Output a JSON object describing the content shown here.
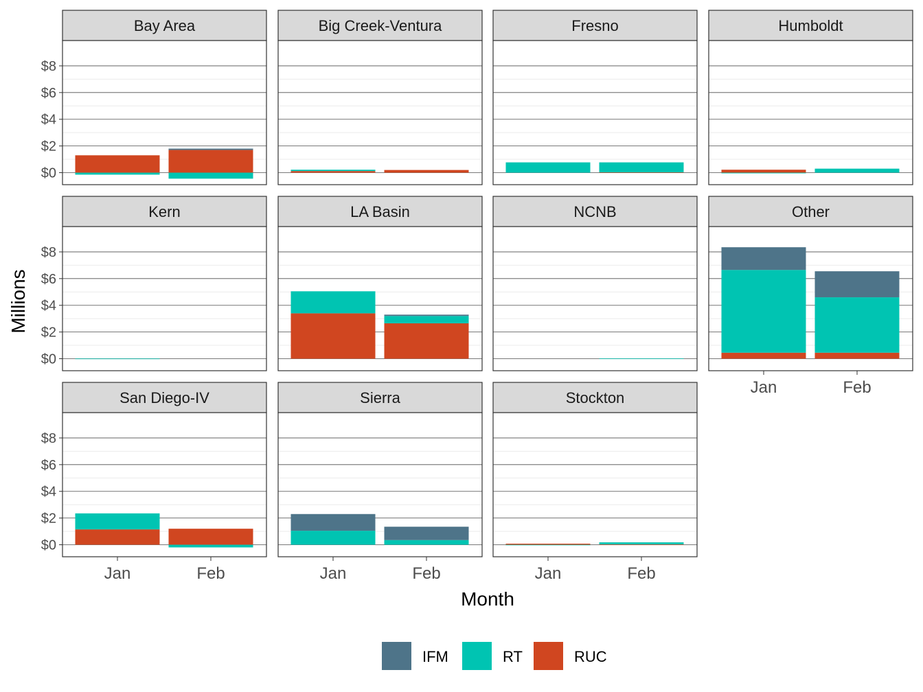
{
  "chart_data": {
    "type": "bar",
    "stacked": true,
    "facet": true,
    "categories": [
      "Jan",
      "Feb"
    ],
    "xlabel": "Month",
    "ylabel": "Millions",
    "ylim": [
      -0.9,
      9.9
    ],
    "y_ticks": [
      {
        "value": 0,
        "label": "$0"
      },
      {
        "value": 2,
        "label": "$2"
      },
      {
        "value": 4,
        "label": "$4"
      },
      {
        "value": 6,
        "label": "$6"
      },
      {
        "value": 8,
        "label": "$8"
      }
    ],
    "grid": true,
    "legend": {
      "position": "bottom"
    },
    "series_order": [
      "IFM",
      "RT",
      "RUC"
    ],
    "series_colors": {
      "IFM": "#4e7489",
      "RT": "#00c4b2",
      "RUC": "#d04620"
    },
    "facets": [
      {
        "name": "Bay Area",
        "series": [
          {
            "name": "IFM",
            "values": [
              0.0,
              0.1
            ]
          },
          {
            "name": "RT",
            "values": [
              -0.15,
              -0.45
            ]
          },
          {
            "name": "RUC",
            "values": [
              1.3,
              1.7
            ]
          }
        ]
      },
      {
        "name": "Big Creek-Ventura",
        "series": [
          {
            "name": "IFM",
            "values": [
              0.0,
              0.0
            ]
          },
          {
            "name": "RT",
            "values": [
              0.1,
              0.0
            ]
          },
          {
            "name": "RUC",
            "values": [
              0.12,
              0.2
            ]
          }
        ]
      },
      {
        "name": "Fresno",
        "series": [
          {
            "name": "IFM",
            "values": [
              0.0,
              0.0
            ]
          },
          {
            "name": "RT",
            "values": [
              0.77,
              0.75
            ]
          },
          {
            "name": "RUC",
            "values": [
              0.0,
              0.02
            ]
          }
        ]
      },
      {
        "name": "Humboldt",
        "series": [
          {
            "name": "IFM",
            "values": [
              0.0,
              0.0
            ]
          },
          {
            "name": "RT",
            "values": [
              -0.05,
              0.3
            ]
          },
          {
            "name": "RUC",
            "values": [
              0.22,
              0.0
            ]
          }
        ]
      },
      {
        "name": "Kern",
        "series": [
          {
            "name": "IFM",
            "values": [
              0.0,
              0.0
            ]
          },
          {
            "name": "RT",
            "values": [
              0.01,
              0.0
            ]
          },
          {
            "name": "RUC",
            "values": [
              0.0,
              0.0
            ]
          }
        ]
      },
      {
        "name": "LA Basin",
        "series": [
          {
            "name": "IFM",
            "values": [
              0.0,
              0.1
            ]
          },
          {
            "name": "RT",
            "values": [
              1.65,
              0.55
            ]
          },
          {
            "name": "RUC",
            "values": [
              3.4,
              2.65
            ]
          }
        ]
      },
      {
        "name": "NCNB",
        "series": [
          {
            "name": "IFM",
            "values": [
              0.0,
              0.0
            ]
          },
          {
            "name": "RT",
            "values": [
              0.0,
              0.02
            ]
          },
          {
            "name": "RUC",
            "values": [
              0.0,
              0.0
            ]
          }
        ]
      },
      {
        "name": "Other",
        "series": [
          {
            "name": "IFM",
            "values": [
              1.7,
              1.95
            ]
          },
          {
            "name": "RT",
            "values": [
              6.2,
              4.15
            ]
          },
          {
            "name": "RUC",
            "values": [
              0.45,
              0.45
            ]
          }
        ]
      },
      {
        "name": "San Diego-IV",
        "series": [
          {
            "name": "IFM",
            "values": [
              0.0,
              0.0
            ]
          },
          {
            "name": "RT",
            "values": [
              1.2,
              -0.2
            ]
          },
          {
            "name": "RUC",
            "values": [
              1.15,
              1.2
            ]
          }
        ]
      },
      {
        "name": "Sierra",
        "series": [
          {
            "name": "IFM",
            "values": [
              1.25,
              1.0
            ]
          },
          {
            "name": "RT",
            "values": [
              1.05,
              0.35
            ]
          },
          {
            "name": "RUC",
            "values": [
              0.0,
              0.0
            ]
          }
        ]
      },
      {
        "name": "Stockton",
        "series": [
          {
            "name": "IFM",
            "values": [
              0.0,
              0.0
            ]
          },
          {
            "name": "RT",
            "values": [
              -0.03,
              0.15
            ]
          },
          {
            "name": "RUC",
            "values": [
              0.08,
              0.03
            ]
          }
        ]
      }
    ]
  }
}
